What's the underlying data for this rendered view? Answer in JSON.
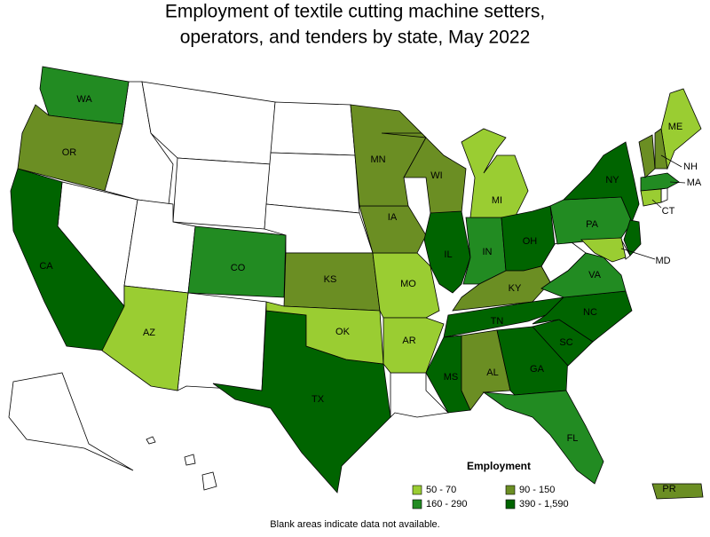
{
  "title": [
    "Employment of textile cutting machine setters,",
    "operators, and tenders by state, May 2022"
  ],
  "legend": {
    "title": "Employment",
    "items": [
      {
        "label": "50 - 70",
        "color": "#9acd32"
      },
      {
        "label": "90 - 150",
        "color": "#6b8e23"
      },
      {
        "label": "160 - 290",
        "color": "#228b22"
      },
      {
        "label": "390 - 1,590",
        "color": "#006400"
      }
    ]
  },
  "states": [
    {
      "label": "WA",
      "class": 2
    },
    {
      "label": "OR",
      "class": 1
    },
    {
      "label": "CA",
      "class": 3
    },
    {
      "label": "CO",
      "class": 2
    },
    {
      "label": "AZ",
      "class": 0
    },
    {
      "label": "TX",
      "class": 3
    },
    {
      "label": "KS",
      "class": 1
    },
    {
      "label": "OK",
      "class": 0
    },
    {
      "label": "MO",
      "class": 0
    },
    {
      "label": "AR",
      "class": 0
    },
    {
      "label": "IA",
      "class": 1
    },
    {
      "label": "MN",
      "class": 1
    },
    {
      "label": "WI",
      "class": 1
    },
    {
      "label": "IL",
      "class": 3
    },
    {
      "label": "IN",
      "class": 2
    },
    {
      "label": "MI",
      "class": 0
    },
    {
      "label": "OH",
      "class": 3
    },
    {
      "label": "KY",
      "class": 1
    },
    {
      "label": "TN",
      "class": 3
    },
    {
      "label": "MS",
      "class": 3
    },
    {
      "label": "AL",
      "class": 1
    },
    {
      "label": "GA",
      "class": 3
    },
    {
      "label": "FL",
      "class": 2
    },
    {
      "label": "SC",
      "class": 3
    },
    {
      "label": "NC",
      "class": 3
    },
    {
      "label": "VA",
      "class": 2
    },
    {
      "label": "PA",
      "class": 2
    },
    {
      "label": "NY",
      "class": 3
    },
    {
      "label": "ME",
      "class": 0
    },
    {
      "label": "NH",
      "class": 1
    },
    {
      "label": "MA",
      "class": 2
    },
    {
      "label": "CT",
      "class": 0
    },
    {
      "label": "MD",
      "class": 0
    },
    {
      "label": "PR",
      "class": 1
    },
    {
      "class": 1
    },
    {
      "class": 3
    }
  ],
  "footnote": "Blank areas indicate data not available."
}
